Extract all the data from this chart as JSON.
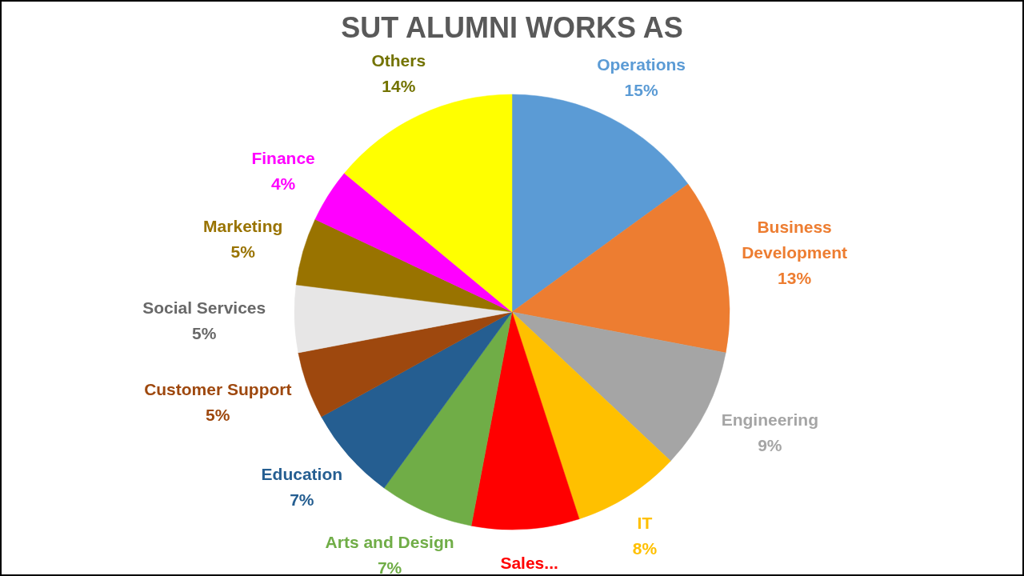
{
  "chart_data": {
    "type": "pie",
    "title": "SUT ALUMNI WORKS AS",
    "categories": [
      "Operations",
      "Business Development",
      "Engineering",
      "IT",
      "Sales...",
      "Arts and Design",
      "Education",
      "Customer Support",
      "Social Services",
      "Marketing",
      "Finance",
      "Others"
    ],
    "values": [
      15,
      13,
      9,
      8,
      8,
      7,
      7,
      5,
      5,
      5,
      4,
      14
    ],
    "colors": [
      "#5b9bd5",
      "#ed7d31",
      "#a5a5a5",
      "#ffc000",
      "#ff0000",
      "#70ad47",
      "#255e91",
      "#9e480e",
      "#e7e6e6",
      "#997300",
      "#ff00ff",
      "#ffff00"
    ],
    "value_labels": [
      "15%",
      "13%",
      "9%",
      "8%",
      null,
      "7%",
      "7%",
      "5%",
      "5%",
      "5%",
      "4%",
      "14%"
    ]
  }
}
